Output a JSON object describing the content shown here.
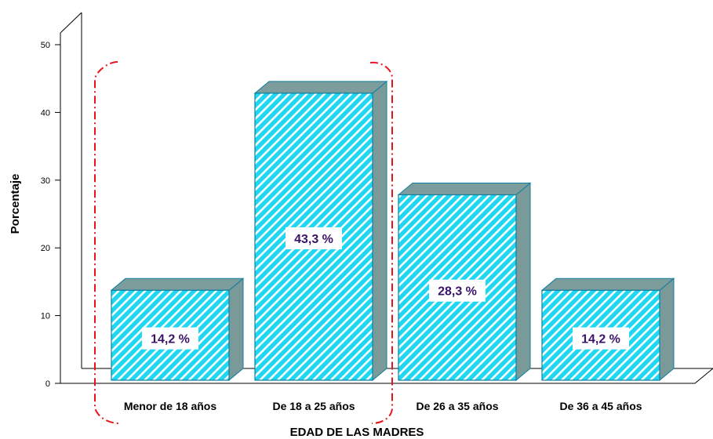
{
  "chart_data": {
    "type": "bar",
    "categories": [
      "Menor de 18 años",
      "De 18 a 25 años",
      "De 26 a 35 años",
      "De 36 a 45 años"
    ],
    "values": [
      14.2,
      43.3,
      28.3,
      14.2
    ],
    "data_labels": [
      "14,2 %",
      "43,3 %",
      "28,3 %",
      "14,2 %"
    ],
    "xlabel": "EDAD DE LAS MADRES",
    "ylabel": "Porcentaje",
    "ylim": [
      0,
      50
    ],
    "yticks": [
      "0",
      "10",
      "20",
      "30",
      "40",
      "50"
    ],
    "grid": false,
    "three_d": true,
    "colors": {
      "bar_front": "#1fd7f2",
      "bar_hatch": "#ffffff",
      "bar_side": "#7a9a9a",
      "bar_top": "#7d9c9c",
      "bar_edge": "#0e7fa0",
      "label_text": "#3a1466",
      "highlight": "#e8141c"
    }
  }
}
